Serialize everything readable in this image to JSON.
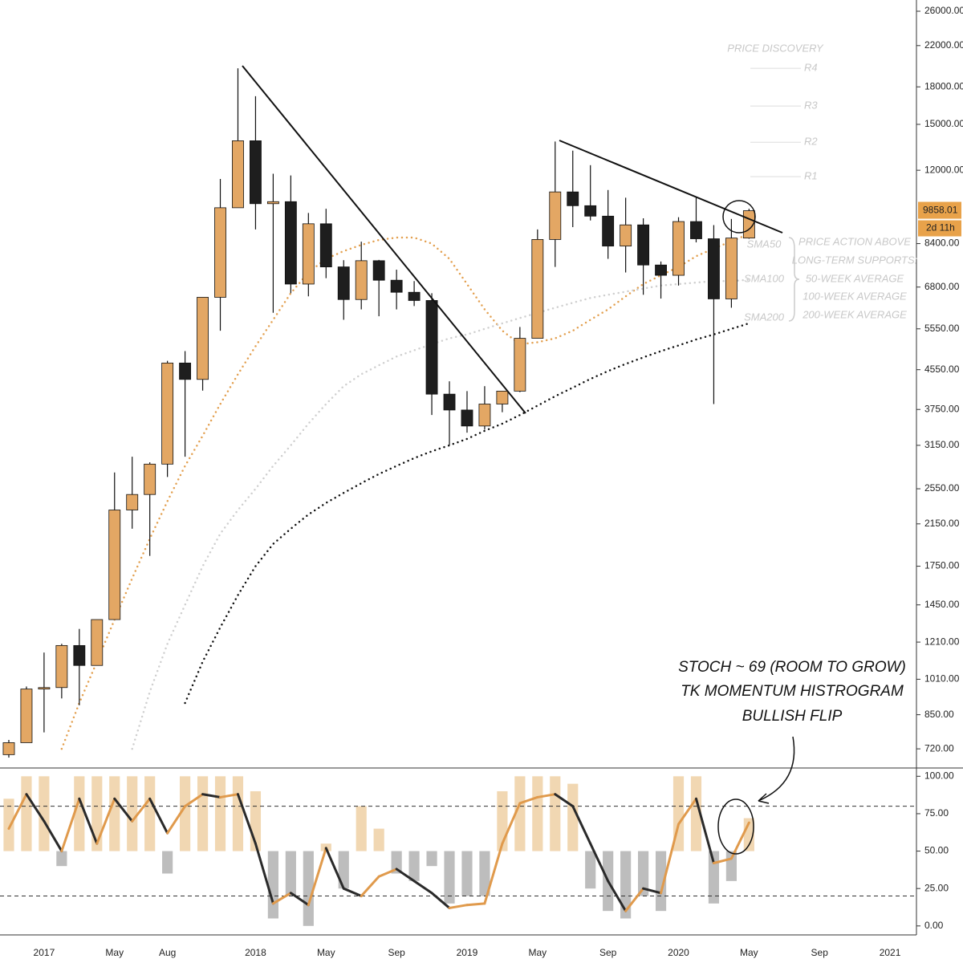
{
  "chart_data": [
    {
      "type": "candlestick",
      "categories": [
        null,
        null,
        "2017",
        null,
        null,
        null,
        "May",
        null,
        null,
        "Aug",
        null,
        null,
        null,
        null,
        "2018",
        null,
        null,
        null,
        "May",
        null,
        null,
        null,
        "Sep",
        null,
        null,
        null,
        "2019",
        null,
        null,
        null,
        "May",
        null,
        null,
        null,
        "Sep",
        null,
        null,
        null,
        "2020",
        null,
        null,
        null,
        "May",
        null,
        null,
        null,
        "Sep",
        null,
        null,
        null,
        "2021",
        null
      ],
      "open": [
        700,
        742,
        963,
        970,
        1190,
        1080,
        1350,
        2300,
        2480,
        2875,
        4700,
        4340,
        6470,
        10000,
        13850,
        10200,
        10300,
        6900,
        9250,
        7500,
        6400,
        7730,
        7030,
        6630,
        6370,
        4040,
        3740,
        3460,
        3850,
        4100,
        5300,
        8570,
        10800,
        10100,
        9600,
        8300,
        9200,
        7570,
        7200,
        9350,
        8600,
        6420,
        8630,
        null,
        null,
        null,
        null,
        null,
        null,
        null,
        null,
        null
      ],
      "high": [
        752,
        975,
        1150,
        1200,
        1290,
        1350,
        2760,
        2980,
        2900,
        4750,
        4980,
        6470,
        11500,
        19700,
        17200,
        11800,
        11700,
        9750,
        9950,
        7750,
        8480,
        7760,
        7400,
        7000,
        6600,
        4300,
        4100,
        4200,
        4100,
        5600,
        9000,
        13800,
        13200,
        12300,
        10900,
        10500,
        9500,
        7700,
        9550,
        10500,
        9190,
        9470,
        9950,
        null,
        null,
        null,
        null,
        null,
        null,
        null,
        null,
        null
      ],
      "low": [
        690,
        742,
        780,
        920,
        890,
        1080,
        1350,
        2100,
        1840,
        2700,
        2980,
        4110,
        5500,
        10000,
        9000,
        6000,
        6600,
        6500,
        7100,
        5800,
        6100,
        5900,
        6100,
        6200,
        3650,
        3150,
        3350,
        3400,
        3700,
        4080,
        5300,
        7500,
        9100,
        9400,
        7800,
        7300,
        6550,
        6430,
        6850,
        8450,
        3850,
        6150,
        8600,
        null,
        null,
        null,
        null,
        null,
        null,
        null,
        null,
        null
      ],
      "close": [
        742,
        963,
        970,
        1190,
        1080,
        1350,
        2300,
        2480,
        2875,
        4700,
        4340,
        6470,
        10000,
        13850,
        10200,
        10300,
        6900,
        9250,
        7500,
        6400,
        7730,
        7030,
        6630,
        6370,
        4040,
        3740,
        3460,
        3850,
        4100,
        5300,
        8570,
        10800,
        10100,
        9600,
        8300,
        9200,
        7570,
        7200,
        9350,
        8600,
        6420,
        8630,
        9858.01,
        null,
        null,
        null,
        null,
        null,
        null,
        null,
        null,
        null
      ],
      "up_color": "#e3a764",
      "down_color": "#1e1e1e",
      "series": [
        {
          "name": "SMA50",
          "color": "#e3a050",
          "values": [
            null,
            null,
            null,
            720,
            900,
            1100,
            1350,
            1650,
            2000,
            2400,
            2850,
            3300,
            3850,
            4450,
            5100,
            5800,
            6600,
            7300,
            7800,
            8100,
            8350,
            8550,
            8650,
            8650,
            8400,
            7800,
            6900,
            6100,
            5500,
            5150,
            5200,
            5300,
            5500,
            5800,
            6100,
            6500,
            6900,
            7200,
            7500,
            7900,
            8200,
            8500,
            8800,
            null,
            null,
            null,
            null,
            null,
            null,
            null,
            null,
            null
          ]
        },
        {
          "name": "SMA100",
          "color": "#cfcfcf",
          "values": [
            null,
            null,
            null,
            null,
            null,
            null,
            null,
            720,
            950,
            1200,
            1450,
            1750,
            2050,
            2300,
            2550,
            2850,
            3150,
            3500,
            3850,
            4200,
            4450,
            4650,
            4850,
            5000,
            5150,
            5300,
            5400,
            5550,
            5700,
            5850,
            6000,
            6150,
            6300,
            6450,
            6550,
            6650,
            6750,
            6850,
            6900,
            6950,
            7000,
            7000,
            7050,
            null,
            null,
            null,
            null,
            null,
            null,
            null,
            null,
            null
          ]
        },
        {
          "name": "SMA200",
          "color": "#111111",
          "values": [
            null,
            null,
            null,
            null,
            null,
            null,
            null,
            null,
            null,
            null,
            900,
            1100,
            1300,
            1520,
            1750,
            1950,
            2100,
            2250,
            2380,
            2500,
            2620,
            2740,
            2850,
            2960,
            3060,
            3150,
            3250,
            3380,
            3500,
            3650,
            3820,
            4000,
            4170,
            4350,
            4520,
            4680,
            4830,
            4980,
            5120,
            5270,
            5400,
            5550,
            5700,
            null,
            null,
            null,
            null,
            null,
            null,
            null,
            null,
            null
          ]
        }
      ],
      "log_scale": true,
      "ylim": [
        656,
        27460
      ],
      "yticks": [
        {
          "value": 720,
          "label": "720.00"
        },
        {
          "value": 850,
          "label": "850.00"
        },
        {
          "value": 1010,
          "label": "1010.00"
        },
        {
          "value": 1210,
          "label": "1210.00"
        },
        {
          "value": 1450,
          "label": "1450.00"
        },
        {
          "value": 1750,
          "label": "1750.00"
        },
        {
          "value": 2150,
          "label": "2150.00"
        },
        {
          "value": 2550,
          "label": "2550.00"
        },
        {
          "value": 3150,
          "label": "3150.00"
        },
        {
          "value": 3750,
          "label": "3750.00"
        },
        {
          "value": 4550,
          "label": "4550.00"
        },
        {
          "value": 5550,
          "label": "5550.00"
        },
        {
          "value": 6800,
          "label": "6800.00"
        },
        {
          "value": 8400,
          "label": "8400.00"
        },
        {
          "value": 12000,
          "label": "12000.00"
        },
        {
          "value": 15000,
          "label": "15000.00"
        },
        {
          "value": 18000,
          "label": "18000.00"
        },
        {
          "value": 22000,
          "label": "22000.00"
        },
        {
          "value": 26000,
          "label": "26000.00"
        }
      ],
      "last_price": 9858.01,
      "last_price_color": "#e8a24a",
      "countdown": "2d 11h",
      "pivots_title": "PRICE DISCOVERY",
      "pivots": [
        {
          "label": "R4",
          "value": 19700
        },
        {
          "label": "R3",
          "value": 16400
        },
        {
          "label": "R2",
          "value": 13750
        },
        {
          "label": "R1",
          "value": 11630
        }
      ],
      "note": [
        "PRICE ACTION ABOVE",
        "LONG-TERM SUPPORTS:",
        "50-WEEK AVERAGE",
        "100-WEEK AVERAGE",
        "200-WEEK AVERAGE"
      ],
      "callout": [
        "STOCH ~ 69 (ROOM TO GROW)",
        "TK MOMENTUM HISTROGRAM",
        "BULLISH FLIP"
      ]
    },
    {
      "type": "stochastic",
      "stoch": [
        65,
        88,
        70,
        50,
        85,
        55,
        85,
        70,
        85,
        62,
        80,
        88,
        86,
        88,
        55,
        15,
        22,
        14,
        52,
        25,
        20,
        33,
        38,
        30,
        22,
        12,
        14,
        15,
        55,
        82,
        86,
        88,
        80,
        55,
        30,
        10,
        25,
        22,
        68,
        85,
        42,
        45,
        69,
        null,
        null,
        null,
        null,
        null,
        null,
        null,
        null,
        null
      ],
      "rising_color": "#e09a4c",
      "falling_color": "#2a2a2a",
      "histogram": [
        85,
        100,
        100,
        40,
        100,
        100,
        100,
        100,
        100,
        35,
        100,
        100,
        100,
        100,
        90,
        5,
        20,
        0,
        55,
        25,
        80,
        65,
        35,
        30,
        40,
        15,
        20,
        20,
        90,
        100,
        100,
        100,
        95,
        25,
        10,
        5,
        20,
        10,
        100,
        100,
        15,
        30,
        72,
        null,
        null,
        null,
        null,
        null,
        null,
        null,
        null,
        null
      ],
      "histogram_base": 50,
      "hist_up_color": "#f1d7b2",
      "hist_down_color": "#bdbdbd",
      "levels": [
        80,
        20
      ],
      "ylim": [
        -6,
        105
      ],
      "yticks": [
        {
          "value": 0,
          "label": "0.00"
        },
        {
          "value": 25,
          "label": "25.00"
        },
        {
          "value": 50,
          "label": "50.00"
        },
        {
          "value": 75,
          "label": "75.00"
        },
        {
          "value": 100,
          "label": "100.00"
        }
      ]
    }
  ]
}
